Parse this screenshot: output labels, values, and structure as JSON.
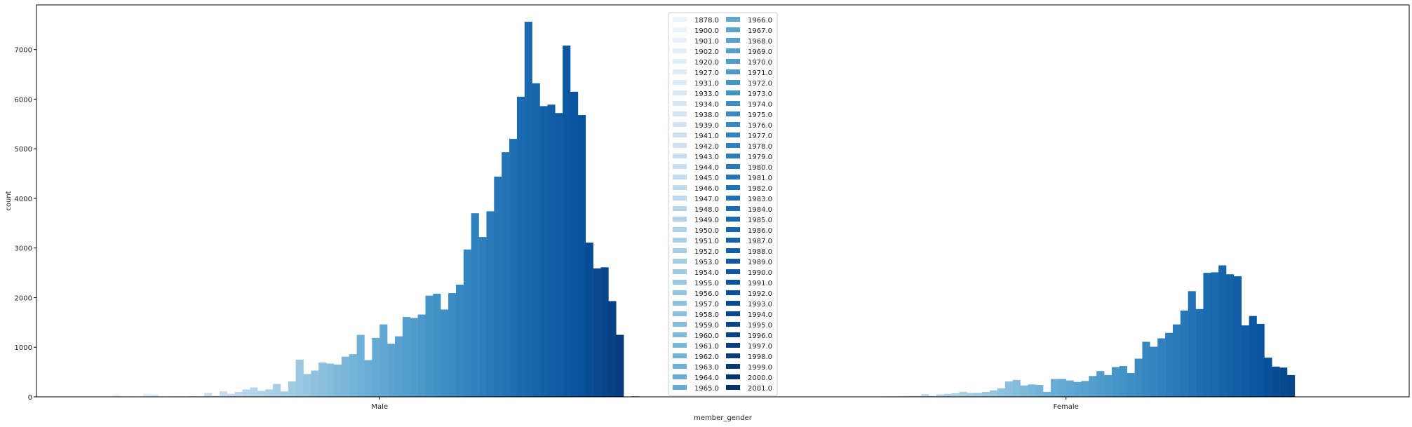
{
  "chart_data": {
    "type": "bar",
    "xlabel": "member_gender",
    "ylabel": "count",
    "categories": [
      "Male",
      "Female"
    ],
    "hue_title": "",
    "ylim": [
      0,
      7900
    ],
    "yticks": [
      0,
      1000,
      2000,
      3000,
      4000,
      5000,
      6000,
      7000
    ],
    "legend_position": "upper center, two columns",
    "colormap": "Blues",
    "series": [
      {
        "name": "1878.0",
        "values": [
          0,
          0
        ]
      },
      {
        "name": "1900.0",
        "values": [
          50,
          0
        ]
      },
      {
        "name": "1901.0",
        "values": [
          5,
          0
        ]
      },
      {
        "name": "1902.0",
        "values": [
          10,
          0
        ]
      },
      {
        "name": "1920.0",
        "values": [
          5,
          0
        ]
      },
      {
        "name": "1927.0",
        "values": [
          60,
          0
        ]
      },
      {
        "name": "1931.0",
        "values": [
          50,
          0
        ]
      },
      {
        "name": "1933.0",
        "values": [
          5,
          0
        ]
      },
      {
        "name": "1934.0",
        "values": [
          10,
          0
        ]
      },
      {
        "name": "1938.0",
        "values": [
          10,
          0
        ]
      },
      {
        "name": "1939.0",
        "values": [
          10,
          5
        ]
      },
      {
        "name": "1941.0",
        "values": [
          15,
          5
        ]
      },
      {
        "name": "1942.0",
        "values": [
          10,
          10
        ]
      },
      {
        "name": "1943.0",
        "values": [
          80,
          10
        ]
      },
      {
        "name": "1944.0",
        "values": [
          20,
          15
        ]
      },
      {
        "name": "1945.0",
        "values": [
          110,
          20
        ]
      },
      {
        "name": "1946.0",
        "values": [
          60,
          20
        ]
      },
      {
        "name": "1947.0",
        "values": [
          100,
          55
        ]
      },
      {
        "name": "1948.0",
        "values": [
          150,
          20
        ]
      },
      {
        "name": "1949.0",
        "values": [
          190,
          50
        ]
      },
      {
        "name": "1950.0",
        "values": [
          120,
          60
        ]
      },
      {
        "name": "1951.0",
        "values": [
          150,
          70
        ]
      },
      {
        "name": "1952.0",
        "values": [
          260,
          100
        ]
      },
      {
        "name": "1953.0",
        "values": [
          110,
          80
        ]
      },
      {
        "name": "1954.0",
        "values": [
          310,
          80
        ]
      },
      {
        "name": "1955.0",
        "values": [
          750,
          100
        ]
      },
      {
        "name": "1956.0",
        "values": [
          460,
          130
        ]
      },
      {
        "name": "1957.0",
        "values": [
          530,
          170
        ]
      },
      {
        "name": "1958.0",
        "values": [
          690,
          310
        ]
      },
      {
        "name": "1959.0",
        "values": [
          670,
          340
        ]
      },
      {
        "name": "1960.0",
        "values": [
          650,
          230
        ]
      },
      {
        "name": "1961.0",
        "values": [
          810,
          250
        ]
      },
      {
        "name": "1962.0",
        "values": [
          860,
          240
        ]
      },
      {
        "name": "1963.0",
        "values": [
          1250,
          100
        ]
      },
      {
        "name": "1964.0",
        "values": [
          740,
          360
        ]
      },
      {
        "name": "1965.0",
        "values": [
          1190,
          360
        ]
      },
      {
        "name": "1966.0",
        "values": [
          1460,
          330
        ]
      },
      {
        "name": "1967.0",
        "values": [
          1070,
          300
        ]
      },
      {
        "name": "1968.0",
        "values": [
          1220,
          320
        ]
      },
      {
        "name": "1969.0",
        "values": [
          1610,
          420
        ]
      },
      {
        "name": "1970.0",
        "values": [
          1590,
          520
        ]
      },
      {
        "name": "1971.0",
        "values": [
          1660,
          440
        ]
      },
      {
        "name": "1972.0",
        "values": [
          2040,
          600
        ]
      },
      {
        "name": "1973.0",
        "values": [
          2080,
          620
        ]
      },
      {
        "name": "1974.0",
        "values": [
          1760,
          480
        ]
      },
      {
        "name": "1975.0",
        "values": [
          2090,
          770
        ]
      },
      {
        "name": "1976.0",
        "values": [
          2260,
          1110
        ]
      },
      {
        "name": "1977.0",
        "values": [
          2970,
          1010
        ]
      },
      {
        "name": "1978.0",
        "values": [
          3700,
          1180
        ]
      },
      {
        "name": "1979.0",
        "values": [
          3220,
          1290
        ]
      },
      {
        "name": "1980.0",
        "values": [
          3740,
          1460
        ]
      },
      {
        "name": "1981.0",
        "values": [
          4440,
          1740
        ]
      },
      {
        "name": "1982.0",
        "values": [
          4930,
          2130
        ]
      },
      {
        "name": "1983.0",
        "values": [
          5200,
          1770
        ]
      },
      {
        "name": "1984.0",
        "values": [
          6050,
          2500
        ]
      },
      {
        "name": "1985.0",
        "values": [
          7560,
          2510
        ]
      },
      {
        "name": "1986.0",
        "values": [
          6320,
          2650
        ]
      },
      {
        "name": "1987.0",
        "values": [
          5860,
          2470
        ]
      },
      {
        "name": "1988.0",
        "values": [
          5890,
          2430
        ]
      },
      {
        "name": "1989.0",
        "values": [
          5720,
          1440
        ]
      },
      {
        "name": "1990.0",
        "values": [
          7080,
          1630
        ]
      },
      {
        "name": "1991.0",
        "values": [
          6150,
          1470
        ]
      },
      {
        "name": "1992.0",
        "values": [
          5680,
          790
        ]
      },
      {
        "name": "1993.0",
        "values": [
          3110,
          610
        ]
      },
      {
        "name": "1994.0",
        "values": [
          2590,
          590
        ]
      },
      {
        "name": "1995.0",
        "values": [
          2610,
          440
        ]
      },
      {
        "name": "1996.0",
        "values": [
          1930,
          0
        ]
      },
      {
        "name": "1997.0",
        "values": [
          1250,
          0
        ]
      },
      {
        "name": "1998.0",
        "values": [
          0,
          0
        ]
      },
      {
        "name": "1999.0",
        "values": [
          10,
          0
        ]
      },
      {
        "name": "2000.0",
        "values": [
          0,
          0
        ]
      },
      {
        "name": "2001.0",
        "values": [
          0,
          0
        ]
      }
    ]
  }
}
